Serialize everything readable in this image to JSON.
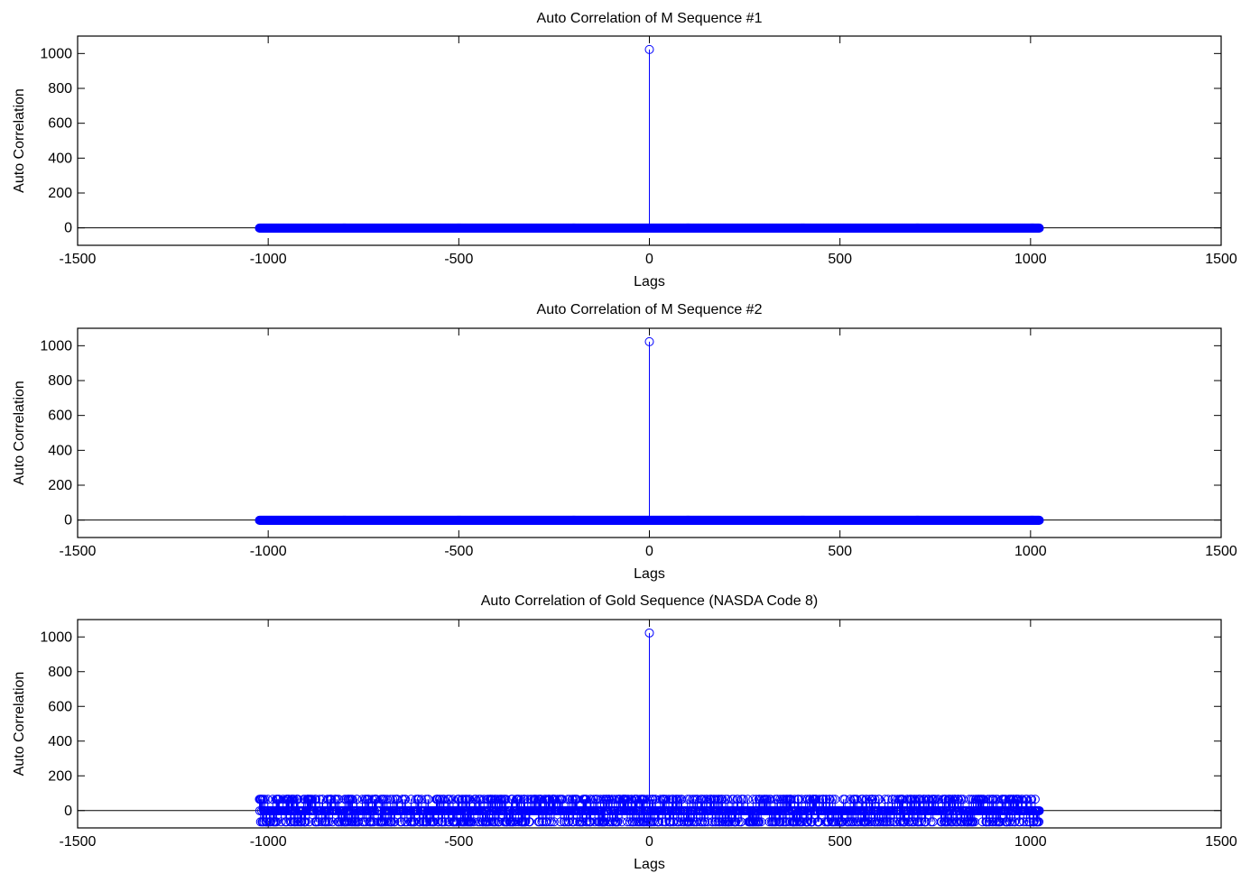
{
  "colors": {
    "marker": "#0000ff",
    "axes": "#000000",
    "background": "#ffffff"
  },
  "chart_data": [
    {
      "type": "stem",
      "title": "Auto Correlation of M Sequence #1",
      "xlabel": "Lags",
      "ylabel": "Auto Correlation",
      "xlim": [
        -1500,
        1500
      ],
      "ylim": [
        -100,
        1100
      ],
      "xticks": [
        -1500,
        -1000,
        -500,
        0,
        500,
        1000,
        1500
      ],
      "yticks": [
        0,
        200,
        400,
        600,
        800,
        1000
      ],
      "grid": false,
      "lag_range": [
        -1023,
        1023
      ],
      "peak": {
        "x": 0,
        "y": 1023
      },
      "offpeak_values": [
        -1
      ]
    },
    {
      "type": "stem",
      "title": "Auto Correlation of M Sequence #2",
      "xlabel": "Lags",
      "ylabel": "Auto Correlation",
      "xlim": [
        -1500,
        1500
      ],
      "ylim": [
        -100,
        1100
      ],
      "xticks": [
        -1500,
        -1000,
        -500,
        0,
        500,
        1000,
        1500
      ],
      "yticks": [
        0,
        200,
        400,
        600,
        800,
        1000
      ],
      "grid": false,
      "lag_range": [
        -1023,
        1023
      ],
      "peak": {
        "x": 0,
        "y": 1023
      },
      "offpeak_values": [
        -1
      ]
    },
    {
      "type": "stem",
      "title": "Auto Correlation of Gold Sequence (NASDA Code 8)",
      "xlabel": "Lags",
      "ylabel": "Auto Correlation",
      "xlim": [
        -1500,
        1500
      ],
      "ylim": [
        -100,
        1100
      ],
      "xticks": [
        -1500,
        -1000,
        -500,
        0,
        500,
        1000,
        1500
      ],
      "yticks": [
        0,
        200,
        400,
        600,
        800,
        1000
      ],
      "grid": false,
      "lag_range": [
        -1023,
        1023
      ],
      "peak": {
        "x": 0,
        "y": 1023
      },
      "offpeak_values": [
        65,
        -1,
        -65
      ]
    }
  ]
}
